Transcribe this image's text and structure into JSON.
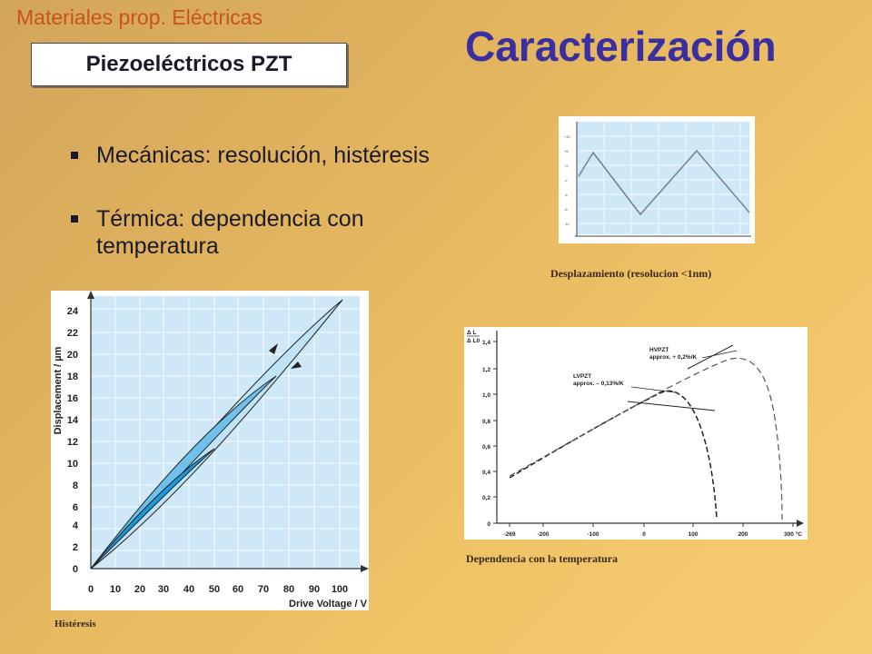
{
  "header": {
    "subtitle": "Materiales prop. Eléctricas",
    "tag": "Piezoeléctricos PZT",
    "title": "Caracterización"
  },
  "bullets": [
    {
      "text": "Mecánicas: resolución, histéresis"
    },
    {
      "text_line1": "Térmica: dependencia con",
      "text_line2": "temperatura"
    }
  ],
  "figures": {
    "displacement": {
      "caption": "Desplazamiento (resolucion <1nm)"
    },
    "hysteresis": {
      "caption": "Histéresis",
      "ylabel": "Displacement / µm",
      "xlabel": "Drive Voltage / V",
      "yticks": [
        "0",
        "2",
        "4",
        "6",
        "8",
        "10",
        "12",
        "14",
        "16",
        "18",
        "20",
        "22",
        "24"
      ],
      "xticks": [
        "0",
        "10",
        "20",
        "30",
        "40",
        "50",
        "60",
        "70",
        "80",
        "90",
        "100"
      ]
    },
    "temperature": {
      "caption": "Dependencia con la temperatura",
      "ylabel_num": "Δ L",
      "ylabel_den": "Δ L0",
      "yticks": [
        "0",
        "0,2",
        "0,4",
        "0,6",
        "0,8",
        "1,0",
        "1,2",
        "1,4"
      ],
      "xticks": [
        "-269",
        "-200",
        "-100",
        "0",
        "100",
        "200",
        "300 °C"
      ],
      "label_hv_name": "HVPZT",
      "label_hv_coef": "approx. + 0,2%/K",
      "label_lv_name": "LVPZT",
      "label_lv_coef": "approx. – 0,13%/K"
    }
  },
  "colors": {
    "subtitle": "#c8541a",
    "title": "#3a2fa0",
    "hysteresis_light": "#bfe3f7",
    "hysteresis_mid": "#6fc0ea",
    "hysteresis_dark": "#1a9ad6"
  }
}
